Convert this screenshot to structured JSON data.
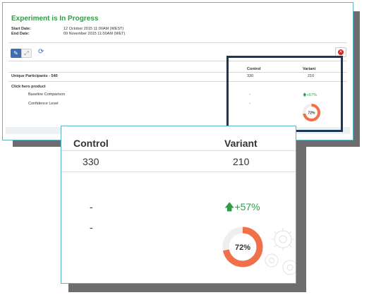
{
  "experiment": {
    "title": "Experiment is In Progress",
    "start_label": "Start Date:",
    "start_value": "12 October 2015 11:00AM (WEST)",
    "end_label": "End Date:",
    "end_value": "09 November 2015 11:00AM (WET)"
  },
  "toolbar": {
    "edit_icon": "pencil-icon",
    "expand_icon": "expand-icon",
    "refresh_icon": "refresh-icon",
    "close_icon": "close-icon"
  },
  "table": {
    "col_control": "Control",
    "col_variant": "Variant",
    "participants_label": "Unique Participants - 540",
    "control_participants": "330",
    "variant_participants": "210",
    "goal_label": "Click hero product",
    "baseline_label": "Baseline Comparison",
    "baseline_control": "-",
    "baseline_variant": "+57%",
    "confidence_label": "Confidence Level",
    "confidence_control": "-",
    "confidence_variant": "72%",
    "confidence_fraction": 0.72
  },
  "colors": {
    "title_green": "#2e9c47",
    "donut_orange": "#f0704a",
    "donut_track": "#eeeeee",
    "highlight_navy": "#1c3657"
  }
}
